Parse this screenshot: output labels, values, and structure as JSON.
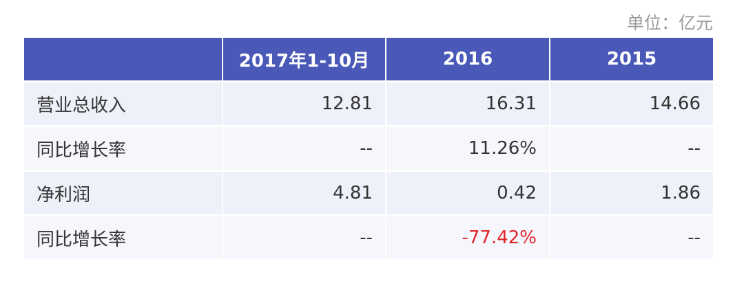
{
  "unit": "单位：亿元",
  "table": {
    "header": [
      "2017年1-10月",
      "2016",
      "2015"
    ],
    "rows": [
      [
        "营业总收入",
        "12.81",
        "16.31",
        "14.66"
      ],
      [
        "同比增长率",
        "--",
        "11.26%",
        "--"
      ],
      [
        "净利润",
        "4.81",
        "0.42",
        "1.86"
      ],
      [
        "同比增长率",
        "--",
        "-77.42%",
        "--"
      ]
    ]
  }
}
